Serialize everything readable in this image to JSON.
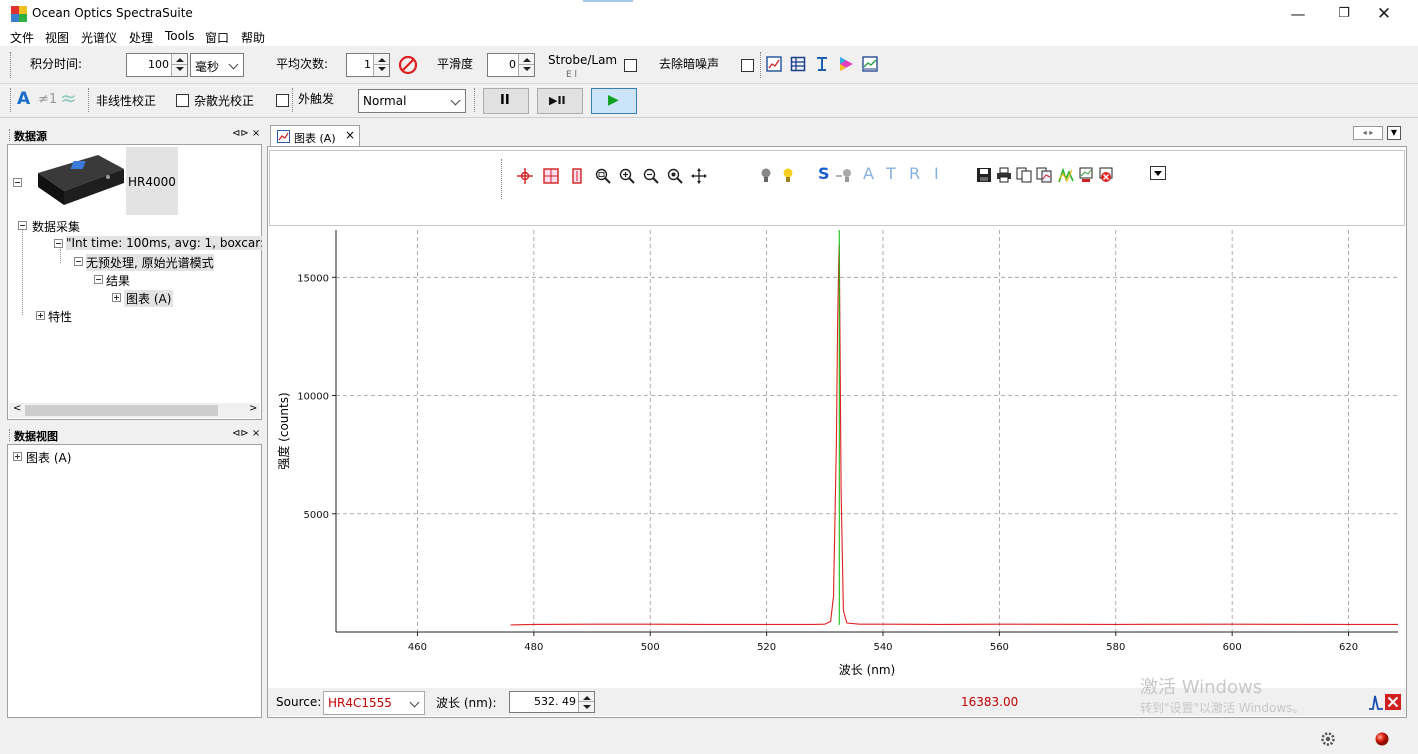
{
  "window": {
    "title": "Ocean Optics SpectraSuite",
    "minimize": "—",
    "maximize": "❐",
    "close": "✕"
  },
  "menu": [
    "文件",
    "视图",
    "光谱仪",
    "处理",
    "Tools",
    "窗口",
    "帮助"
  ],
  "toolbar1": {
    "integration_label": "积分时间:",
    "integration_value": "100",
    "integration_unit": "毫秒",
    "average_label": "平均次数:",
    "average_value": "1",
    "smoothing_label": "平滑度",
    "smoothing_value": "0",
    "strobe_label": "Strobe/Lam",
    "strobe_sub": "E   l",
    "dark_label": "去除暗噪声",
    "icons": [
      "graph-icon",
      "table-icon",
      "text-cursor-icon",
      "color-icon",
      "chart-view-icon"
    ]
  },
  "toolbar2": {
    "nonlinear_label": "非线性校正",
    "stray_label": "杂散光校正",
    "trigger_label": "外触发",
    "trigger_mode": "Normal",
    "pause_label": "II",
    "step_label": "▶II",
    "play_label": "▶"
  },
  "datasource_panel": {
    "title": "数据源",
    "pin": "⊲⊳ ×",
    "device": "HR4000",
    "tree": [
      {
        "label": "数据采集",
        "level": 1
      },
      {
        "label": "\"Int time: 100ms, avg: 1, boxcar:",
        "level": 2
      },
      {
        "label": "无预处理, 原始光谱模式",
        "level": 3
      },
      {
        "label": "结果",
        "level": 4
      },
      {
        "label": "图表 (A)",
        "level": 5
      },
      {
        "label": "特性",
        "level": 1
      }
    ]
  },
  "dataview_panel": {
    "title": "数据视图",
    "pin": "⊲⊳ ×",
    "tree": [
      {
        "label": "图表 (A)"
      }
    ]
  },
  "chart_tab": {
    "label": "图表 (A)",
    "close": "×"
  },
  "chart_toolbar": {
    "letters": [
      "S",
      "A",
      "T",
      "R",
      "I"
    ]
  },
  "chart_data": {
    "type": "line",
    "xlabel": "波长 (nm)",
    "ylabel": "强度 (counts)",
    "xlim": [
      446.0,
      628.5
    ],
    "ylim": [
      0,
      17000
    ],
    "xticks": [
      460,
      480,
      500,
      520,
      540,
      560,
      580,
      600,
      620
    ],
    "yticks": [
      5000,
      10000,
      15000
    ],
    "grid": true,
    "series": [
      {
        "color": "#e02020",
        "x": [
          476.0,
          480,
          490,
          500,
          510,
          520,
          528,
          530,
          531.0,
          531.5,
          532.0,
          532.2,
          532.4,
          532.49,
          532.6,
          532.8,
          533.2,
          533.8,
          536,
          540,
          550,
          560,
          580,
          600,
          620,
          628.5
        ],
        "y": [
          300,
          320,
          330,
          330,
          320,
          320,
          320,
          330,
          450,
          1500,
          8000,
          13000,
          15800,
          16383,
          13000,
          6000,
          900,
          380,
          330,
          330,
          320,
          330,
          320,
          330,
          320,
          320
        ]
      },
      {
        "color": "#18c018",
        "x": [
          532.49,
          532.49
        ],
        "y": [
          300,
          17000
        ]
      }
    ]
  },
  "bottombar": {
    "source_label": "Source:",
    "source_value": "HR4C1555",
    "wavelength_label": "波长 (nm):",
    "wavelength_value": "532. 49",
    "intensity_value": "16383.00"
  },
  "watermark": {
    "line1": "激活 Windows",
    "line2": "转到\"设置\"以激活 Windows。"
  },
  "colors": {
    "source": "#c00000",
    "intensity": "#c00000",
    "accent_blue": "#1a6ec8"
  }
}
